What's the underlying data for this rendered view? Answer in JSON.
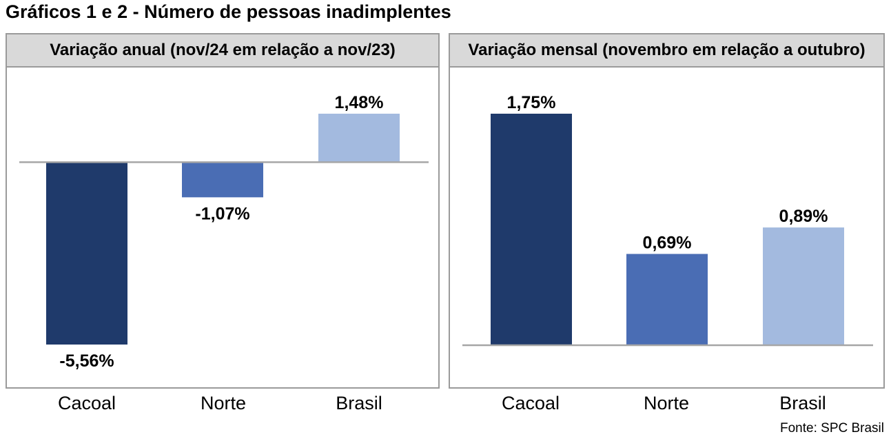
{
  "title": "Gráficos 1 e 2 - Número de pessoas inadimplentes",
  "source": "Fonte: SPC Brasil",
  "colors": {
    "cacoal": "#1f3a6b",
    "norte": "#4a6db4",
    "brasil": "#a3badf",
    "axis": "#a6a6a6",
    "header_bg": "#d9d9d9"
  },
  "chart_data": [
    {
      "type": "bar",
      "title": "Variação anual (nov/24 em relação a nov/23)",
      "categories": [
        "Cacoal",
        "Norte",
        "Brasil"
      ],
      "values": [
        -5.56,
        -1.07,
        1.48
      ],
      "data_labels": [
        "-5,56%",
        "-1,07%",
        "1,48%"
      ],
      "ylim": [
        -5.56,
        1.48
      ],
      "grid": false
    },
    {
      "type": "bar",
      "title": "Variação mensal (novembro em relação a outubro)",
      "categories": [
        "Cacoal",
        "Norte",
        "Brasil"
      ],
      "values": [
        1.75,
        0.69,
        0.89
      ],
      "data_labels": [
        "1,75%",
        "0,69%",
        "0,89%"
      ],
      "ylim": [
        0,
        1.75
      ],
      "grid": false
    }
  ]
}
